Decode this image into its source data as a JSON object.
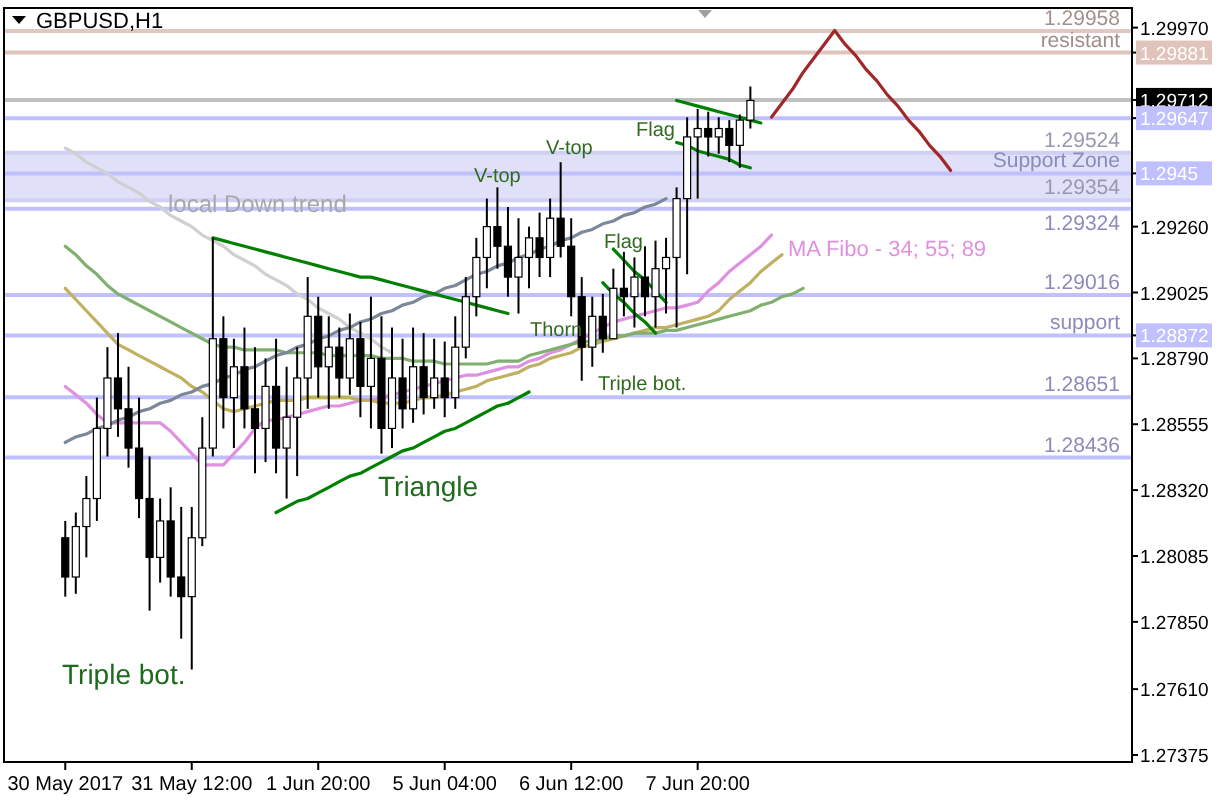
{
  "chart_data": {
    "type": "candlestick",
    "title": "GBPUSD,H1",
    "categories": [
      "30 May 2017",
      null,
      null,
      null,
      null,
      null,
      null,
      null,
      null,
      null,
      null,
      null,
      "31 May 12:00",
      null,
      null,
      null,
      null,
      null,
      null,
      null,
      null,
      null,
      null,
      null,
      "1 Jun 20:00",
      null,
      null,
      null,
      null,
      null,
      null,
      null,
      null,
      null,
      null,
      null,
      "5 Jun 04:00",
      null,
      null,
      null,
      null,
      null,
      null,
      null,
      null,
      null,
      null,
      null,
      "6 Jun 12:00",
      null,
      null,
      null,
      null,
      null,
      null,
      null,
      null,
      null,
      null,
      null,
      "7 Jun 20:00",
      null,
      null,
      null,
      null,
      null,
      null,
      null,
      null,
      null,
      null,
      null,
      null,
      null,
      null,
      null,
      null,
      null,
      null,
      null,
      null,
      null,
      null,
      null,
      null
    ],
    "ohlc": [
      [
        1.2815,
        1.2821,
        1.2794,
        1.2801
      ],
      [
        1.2801,
        1.2824,
        1.2795,
        1.2819
      ],
      [
        1.2819,
        1.2837,
        1.2808,
        1.2829
      ],
      [
        1.2829,
        1.2865,
        1.2821,
        1.2854
      ],
      [
        1.2854,
        1.2883,
        1.2844,
        1.2872
      ],
      [
        1.2872,
        1.2888,
        1.2851,
        1.2861
      ],
      [
        1.2861,
        1.2876,
        1.284,
        1.2847
      ],
      [
        1.2847,
        1.2865,
        1.2822,
        1.2829
      ],
      [
        1.2829,
        1.2844,
        1.2789,
        1.2808
      ],
      [
        1.2808,
        1.2829,
        1.2799,
        1.2821
      ],
      [
        1.2821,
        1.2833,
        1.2794,
        1.2801
      ],
      [
        1.2801,
        1.2826,
        1.2779,
        1.2794
      ],
      [
        1.2794,
        1.2826,
        1.2768,
        1.2815
      ],
      [
        1.2815,
        1.2858,
        1.2812,
        1.2847
      ],
      [
        1.2847,
        1.2922,
        1.2844,
        1.2886
      ],
      [
        1.2886,
        1.2894,
        1.2854,
        1.2865
      ],
      [
        1.2865,
        1.2886,
        1.2847,
        1.2876
      ],
      [
        1.2876,
        1.289,
        1.2854,
        1.2861
      ],
      [
        1.2861,
        1.2883,
        1.2838,
        1.2854
      ],
      [
        1.2854,
        1.2879,
        1.2842,
        1.2869
      ],
      [
        1.2869,
        1.2886,
        1.2838,
        1.2847
      ],
      [
        1.2847,
        1.2876,
        1.2829,
        1.2858
      ],
      [
        1.2858,
        1.2883,
        1.2837,
        1.2872
      ],
      [
        1.2872,
        1.2908,
        1.2861,
        1.2894
      ],
      [
        1.2894,
        1.2901,
        1.2865,
        1.2876
      ],
      [
        1.2876,
        1.2894,
        1.2861,
        1.2883
      ],
      [
        1.2883,
        1.289,
        1.2865,
        1.2872
      ],
      [
        1.2872,
        1.2895,
        1.2866,
        1.2886
      ],
      [
        1.2886,
        1.2892,
        1.2858,
        1.2869
      ],
      [
        1.2869,
        1.2901,
        1.2854,
        1.2879
      ],
      [
        1.2879,
        1.2894,
        1.2845,
        1.2854
      ],
      [
        1.2854,
        1.289,
        1.2847,
        1.2872
      ],
      [
        1.2872,
        1.2886,
        1.2854,
        1.2861
      ],
      [
        1.2861,
        1.289,
        1.2856,
        1.2876
      ],
      [
        1.2876,
        1.2888,
        1.2859,
        1.2865
      ],
      [
        1.2865,
        1.2886,
        1.2861,
        1.2872
      ],
      [
        1.2872,
        1.2885,
        1.2858,
        1.2865
      ],
      [
        1.2865,
        1.2894,
        1.2861,
        1.2883
      ],
      [
        1.2883,
        1.2908,
        1.2879,
        1.2901
      ],
      [
        1.2901,
        1.2922,
        1.2894,
        1.2915
      ],
      [
        1.2915,
        1.2936,
        1.2904,
        1.2926
      ],
      [
        1.2926,
        1.294,
        1.2911,
        1.2919
      ],
      [
        1.2919,
        1.2933,
        1.2901,
        1.2908
      ],
      [
        1.2908,
        1.2929,
        1.2895,
        1.2915
      ],
      [
        1.2915,
        1.2926,
        1.2904,
        1.2922
      ],
      [
        1.2922,
        1.2931,
        1.2908,
        1.2915
      ],
      [
        1.2915,
        1.2936,
        1.2908,
        1.2929
      ],
      [
        1.2929,
        1.2949,
        1.2915,
        1.2919
      ],
      [
        1.2919,
        1.2929,
        1.2894,
        1.2901
      ],
      [
        1.2901,
        1.2908,
        1.2871,
        1.2883
      ],
      [
        1.2883,
        1.2901,
        1.2876,
        1.2894
      ],
      [
        1.2894,
        1.2902,
        1.2881,
        1.2886
      ],
      [
        1.2886,
        1.2911,
        1.2886,
        1.2904
      ],
      [
        1.2904,
        1.2917,
        1.2894,
        1.2901
      ],
      [
        1.2901,
        1.2915,
        1.289,
        1.2908
      ],
      [
        1.2908,
        1.2919,
        1.2894,
        1.2901
      ],
      [
        1.2901,
        1.2921,
        1.289,
        1.2911
      ],
      [
        1.2911,
        1.2922,
        1.2895,
        1.2915
      ],
      [
        1.2915,
        1.294,
        1.289,
        1.2936
      ],
      [
        1.2936,
        1.2965,
        1.2909,
        1.2958
      ],
      [
        1.2958,
        1.2968,
        1.2936,
        1.2961
      ],
      [
        1.2961,
        1.2967,
        1.2951,
        1.2958
      ],
      [
        1.2958,
        1.2965,
        1.2952,
        1.2961
      ],
      [
        1.2961,
        1.2964,
        1.2949,
        1.2955
      ],
      [
        1.2955,
        1.2966,
        1.2947,
        1.2964
      ],
      [
        1.2964,
        1.2976,
        1.2961,
        1.2971
      ],
      null,
      null,
      null,
      null,
      null,
      null,
      null,
      null,
      null,
      null,
      null,
      null,
      null,
      null,
      null,
      null,
      null,
      null,
      null
    ],
    "series": [
      {
        "type": "line",
        "color": "#e090e0",
        "values": [
          1.2869,
          1.2866,
          1.2863,
          1.2859,
          1.2856,
          1.2856,
          1.2856,
          1.2856,
          1.2856,
          1.2856,
          1.2853,
          1.2849,
          1.2845,
          1.2841,
          1.2841,
          1.2841,
          1.2845,
          1.2849,
          1.2854,
          1.2857,
          1.2857,
          1.2858,
          1.2859,
          1.286,
          1.2861,
          1.2862,
          1.2862,
          1.2863,
          1.2864,
          1.2864,
          1.2865,
          1.2866,
          1.2867,
          1.2868,
          1.2869,
          1.287,
          1.2871,
          1.2872,
          1.2873,
          1.2873,
          1.2874,
          1.2875,
          1.2876,
          1.2876,
          1.2878,
          1.2879,
          1.2881,
          1.2882,
          1.2884,
          1.2886,
          1.2888,
          1.289,
          1.2892,
          1.2893,
          1.2894,
          1.2895,
          1.2896,
          1.2897,
          1.2897,
          1.2898,
          1.2899,
          1.2903,
          1.2906,
          1.291,
          1.2913,
          1.2916,
          1.2919,
          1.2923,
          null,
          null,
          null,
          null,
          null,
          null,
          null,
          null,
          null,
          null,
          null,
          null,
          null,
          null,
          null,
          null,
          null
        ]
      },
      {
        "type": "line",
        "color": "#c0b060",
        "values": [
          1.2904,
          1.29,
          1.2896,
          1.2892,
          1.2888,
          1.2884,
          1.2882,
          1.288,
          1.2878,
          1.2876,
          1.2874,
          1.2872,
          1.2869,
          1.2867,
          1.2864,
          1.2861,
          1.286,
          1.2861,
          1.2862,
          1.2863,
          1.2864,
          1.2864,
          1.2864,
          1.2865,
          1.2865,
          1.2865,
          1.2865,
          1.2865,
          1.2864,
          1.2864,
          1.2863,
          1.2863,
          1.2863,
          1.2864,
          1.2865,
          1.2865,
          1.2866,
          1.2867,
          1.2868,
          1.2869,
          1.2871,
          1.2872,
          1.2873,
          1.2874,
          1.2876,
          1.2877,
          1.2879,
          1.288,
          1.2881,
          1.2883,
          1.2884,
          1.2885,
          1.2886,
          1.2887,
          1.2888,
          1.2889,
          1.289,
          1.289,
          1.2891,
          1.2892,
          1.2893,
          1.2894,
          1.2896,
          1.29,
          1.2903,
          1.2906,
          1.291,
          1.2913,
          1.2916,
          null,
          null,
          null,
          null,
          null,
          null,
          null,
          null,
          null,
          null,
          null,
          null,
          null,
          null,
          null,
          null
        ]
      },
      {
        "type": "line",
        "color": "#80b070",
        "values": [
          1.2919,
          1.2916,
          1.2912,
          1.2909,
          1.2905,
          1.2902,
          1.29,
          1.2898,
          1.2896,
          1.2894,
          1.2892,
          1.289,
          1.2888,
          1.2886,
          1.2884,
          1.2883,
          1.2883,
          1.2882,
          1.2882,
          1.2882,
          1.2882,
          1.2881,
          1.2881,
          1.2881,
          1.2881,
          1.288,
          1.288,
          1.288,
          1.288,
          1.288,
          1.2879,
          1.2879,
          1.2879,
          1.2878,
          1.2878,
          1.2878,
          1.2877,
          1.2877,
          1.2877,
          1.2877,
          1.2877,
          1.2878,
          1.2878,
          1.2878,
          1.288,
          1.2881,
          1.2882,
          1.2883,
          1.2884,
          1.2885,
          1.2885,
          1.2886,
          1.2887,
          1.2887,
          1.2888,
          1.2888,
          1.2888,
          1.2889,
          1.2889,
          1.289,
          1.2891,
          1.2892,
          1.2893,
          1.2894,
          1.2895,
          1.2896,
          1.2898,
          1.2899,
          1.2901,
          1.2902,
          1.2904,
          null,
          null,
          null,
          null,
          null,
          null,
          null,
          null,
          null,
          null,
          null,
          null,
          null,
          null
        ]
      },
      {
        "type": "line",
        "color": "#d0d0d0",
        "values": [
          1.2954,
          1.2952,
          1.2949,
          1.2947,
          1.2945,
          1.2942,
          1.294,
          1.2938,
          1.2935,
          1.2933,
          1.293,
          1.2928,
          1.2926,
          1.2923,
          1.2921,
          1.2919,
          1.2916,
          1.2914,
          1.2912,
          1.2909,
          1.2907,
          1.2905,
          1.2902,
          1.29,
          1.2897,
          1.2895,
          1.2893,
          1.289,
          1.2888,
          1.2886,
          1.2883,
          1.2881,
          null,
          null,
          null,
          null,
          null,
          null,
          null,
          null,
          null,
          null,
          null,
          null,
          null,
          null,
          null,
          null,
          null,
          null,
          null,
          null,
          null,
          null,
          null,
          null,
          null,
          null,
          null,
          null,
          null,
          null,
          null,
          null,
          null,
          null,
          null,
          null,
          null,
          null,
          null,
          null,
          null,
          null,
          null,
          null,
          null,
          null,
          null,
          null,
          null,
          null,
          null,
          null,
          null
        ]
      },
      {
        "type": "line",
        "color": "#7c8898",
        "values": [
          1.2849,
          1.2851,
          1.2852,
          1.2854,
          1.2855,
          1.2857,
          1.2858,
          1.286,
          1.2861,
          1.2863,
          1.2864,
          1.2866,
          1.2867,
          1.2869,
          1.287,
          1.2872,
          1.2873,
          1.2875,
          1.2876,
          1.2878,
          1.288,
          1.2881,
          1.2883,
          1.2884,
          1.2886,
          1.2887,
          1.2889,
          1.289,
          1.2892,
          1.2893,
          1.2895,
          1.2896,
          1.2898,
          1.2899,
          1.2901,
          1.2902,
          1.2904,
          1.2905,
          1.2907,
          1.2909,
          1.291,
          1.2912,
          1.2913,
          1.2915,
          1.2916,
          1.2918,
          1.2919,
          1.2921,
          1.2922,
          1.2924,
          1.2925,
          1.2927,
          1.2928,
          1.293,
          1.2931,
          1.2933,
          1.2934,
          1.2936,
          null,
          null,
          null,
          null,
          null,
          null,
          null,
          null,
          null,
          null,
          null,
          null,
          null,
          null,
          null,
          null,
          null,
          null,
          null,
          null,
          null,
          null,
          null,
          null,
          null,
          null,
          null
        ]
      },
      {
        "type": "line",
        "color": "#008000",
        "values": [
          null,
          null,
          null,
          null,
          null,
          null,
          null,
          null,
          null,
          null,
          null,
          null,
          null,
          null,
          1.2922,
          1.2921,
          1.292,
          1.2919,
          1.2918,
          1.2917,
          1.2916,
          1.2915,
          1.2914,
          1.2913,
          1.2912,
          1.2911,
          1.291,
          1.2909,
          1.2908,
          1.2908,
          1.2907,
          1.2906,
          1.2905,
          1.2904,
          1.2903,
          1.2902,
          1.2901,
          1.29,
          1.2899,
          1.2898,
          1.2897,
          1.2896,
          1.2895,
          null,
          null,
          null,
          null,
          null,
          null,
          null,
          null,
          null,
          null,
          null,
          null,
          null,
          null,
          null,
          null,
          null,
          null,
          null,
          null,
          null,
          null,
          null,
          null,
          null,
          null,
          null,
          null,
          null,
          null,
          null,
          null,
          null,
          null,
          null,
          null,
          null,
          null,
          null,
          null,
          null,
          null
        ]
      },
      {
        "type": "line",
        "color": "#008000",
        "values": [
          null,
          null,
          null,
          null,
          null,
          null,
          null,
          null,
          null,
          null,
          null,
          null,
          null,
          null,
          null,
          null,
          null,
          null,
          null,
          null,
          1.2824,
          1.2826,
          1.2828,
          1.2829,
          1.2831,
          1.2833,
          1.2835,
          1.2837,
          1.2838,
          1.284,
          1.2842,
          1.2844,
          1.2846,
          1.2847,
          1.2849,
          1.2851,
          1.2853,
          1.2854,
          1.2856,
          1.2858,
          1.286,
          1.2862,
          1.2863,
          1.2865,
          1.2867,
          null,
          null,
          null,
          null,
          null,
          null,
          null,
          null,
          null,
          null,
          null,
          null,
          null,
          null,
          null,
          null,
          null,
          null,
          null,
          null,
          null,
          null,
          null,
          null,
          null,
          null,
          null,
          null,
          null,
          null,
          null,
          null,
          null,
          null,
          null,
          null,
          null,
          null,
          null,
          null
        ]
      },
      {
        "type": "line",
        "color": "#008000",
        "values": [
          null,
          null,
          null,
          null,
          null,
          null,
          null,
          null,
          null,
          null,
          null,
          null,
          null,
          null,
          null,
          null,
          null,
          null,
          null,
          null,
          null,
          null,
          null,
          null,
          null,
          null,
          null,
          null,
          null,
          null,
          null,
          null,
          null,
          null,
          null,
          null,
          null,
          null,
          null,
          null,
          null,
          null,
          null,
          null,
          null,
          null,
          null,
          null,
          null,
          null,
          null,
          null,
          1.2918,
          1.2914,
          1.291,
          1.2907,
          1.2903,
          1.2899,
          null,
          null,
          null,
          null,
          null,
          null,
          null,
          null,
          null,
          null,
          null,
          null,
          null,
          null,
          null,
          null,
          null,
          null,
          null,
          null,
          null,
          null,
          null,
          null,
          null,
          null,
          null
        ]
      },
      {
        "type": "line",
        "color": "#008000",
        "values": [
          null,
          null,
          null,
          null,
          null,
          null,
          null,
          null,
          null,
          null,
          null,
          null,
          null,
          null,
          null,
          null,
          null,
          null,
          null,
          null,
          null,
          null,
          null,
          null,
          null,
          null,
          null,
          null,
          null,
          null,
          null,
          null,
          null,
          null,
          null,
          null,
          null,
          null,
          null,
          null,
          null,
          null,
          null,
          null,
          null,
          null,
          null,
          null,
          null,
          null,
          null,
          1.2906,
          1.2902,
          1.2899,
          1.2895,
          1.2892,
          1.2888,
          null,
          null,
          null,
          null,
          null,
          null,
          null,
          null,
          null,
          null,
          null,
          null,
          null,
          null,
          null,
          null,
          null,
          null,
          null,
          null,
          null,
          null,
          null,
          null,
          null,
          null,
          null,
          null
        ]
      },
      {
        "type": "line",
        "color": "#008000",
        "values": [
          null,
          null,
          null,
          null,
          null,
          null,
          null,
          null,
          null,
          null,
          null,
          null,
          null,
          null,
          null,
          null,
          null,
          null,
          null,
          null,
          null,
          null,
          null,
          null,
          null,
          null,
          null,
          null,
          null,
          null,
          null,
          null,
          null,
          null,
          null,
          null,
          null,
          null,
          null,
          null,
          null,
          null,
          null,
          null,
          null,
          null,
          null,
          null,
          null,
          null,
          null,
          null,
          null,
          null,
          null,
          null,
          null,
          null,
          1.2971,
          1.297,
          1.2969,
          1.2968,
          1.2967,
          1.2966,
          1.2965,
          1.2964,
          1.2963,
          null,
          null,
          null,
          null,
          null,
          null,
          null,
          null,
          null,
          null,
          null,
          null,
          null,
          null,
          null,
          null,
          null,
          null
        ]
      },
      {
        "type": "line",
        "color": "#008000",
        "values": [
          null,
          null,
          null,
          null,
          null,
          null,
          null,
          null,
          null,
          null,
          null,
          null,
          null,
          null,
          null,
          null,
          null,
          null,
          null,
          null,
          null,
          null,
          null,
          null,
          null,
          null,
          null,
          null,
          null,
          null,
          null,
          null,
          null,
          null,
          null,
          null,
          null,
          null,
          null,
          null,
          null,
          null,
          null,
          null,
          null,
          null,
          null,
          null,
          null,
          null,
          null,
          null,
          null,
          null,
          null,
          null,
          null,
          null,
          1.2956,
          1.2955,
          1.2953,
          1.2952,
          1.2951,
          1.295,
          1.2948,
          1.2947,
          null,
          null,
          null,
          null,
          null,
          null,
          null,
          null,
          null,
          null,
          null,
          null,
          null,
          null,
          null,
          null,
          null,
          null,
          null
        ]
      },
      {
        "type": "line",
        "color": "#a02828",
        "values": [
          null,
          null,
          null,
          null,
          null,
          null,
          null,
          null,
          null,
          null,
          null,
          null,
          null,
          null,
          null,
          null,
          null,
          null,
          null,
          null,
          null,
          null,
          null,
          null,
          null,
          null,
          null,
          null,
          null,
          null,
          null,
          null,
          null,
          null,
          null,
          null,
          null,
          null,
          null,
          null,
          null,
          null,
          null,
          null,
          null,
          null,
          null,
          null,
          null,
          null,
          null,
          null,
          null,
          null,
          null,
          null,
          null,
          null,
          null,
          null,
          null,
          null,
          null,
          null,
          null,
          null,
          null,
          1.2965,
          1.297,
          1.2975,
          1.2981,
          1.2986,
          1.2991,
          1.2996,
          1.2991,
          1.2987,
          1.2982,
          1.2978,
          1.2973,
          1.2969,
          1.2964,
          1.296,
          1.2955,
          1.2951,
          1.2946
        ]
      }
    ],
    "ylim": [
      1.2735,
      1.3004
    ],
    "yticks": [
      {
        "value": 1.2997,
        "label": "1.29970"
      },
      1.29881,
      1.29712,
      1.29647,
      1.2945,
      {
        "value": 1.2926,
        "label": "1.29260"
      },
      1.29025,
      {
        "value": 1.2879,
        "label": "1.28790"
      },
      1.28872,
      1.28555,
      {
        "value": 1.2832,
        "label": "1.28320"
      },
      1.28085,
      {
        "value": 1.2785,
        "label": "1.27850"
      },
      {
        "value": 1.2761,
        "label": "1.27610"
      },
      1.27375
    ],
    "ref_lines": [
      {
        "axis": "y",
        "value": 1.29958,
        "label": "1.29958",
        "color": "#e0c8c0"
      },
      {
        "axis": "y",
        "value": 1.29881,
        "label": "resistant",
        "color": "#e0c4bc"
      },
      {
        "axis": "y",
        "value": 1.29712,
        "label": null,
        "color": "#c0c0c0"
      },
      {
        "axis": "y",
        "value": 1.29647,
        "label": null,
        "color": "#c0c0ff"
      },
      {
        "axis": "y",
        "value": 1.29524,
        "label": "1.29524",
        "color": "#d0d0f4"
      },
      {
        "axis": "y",
        "value": 1.2945,
        "label": "Support Zone",
        "color": "#c0c0ff"
      },
      {
        "axis": "y",
        "value": 1.29354,
        "label": "1.29354",
        "color": "#d0d0f4"
      },
      {
        "axis": "y",
        "value": 1.29324,
        "label": "1.29324",
        "color": "#c0c0ff"
      },
      {
        "axis": "y",
        "value": 1.29016,
        "label": "1.29016",
        "color": "#c0c0ff"
      },
      {
        "axis": "y",
        "value": 1.28872,
        "label": "support",
        "color": "#c0c0ff"
      },
      {
        "axis": "y",
        "value": 1.28651,
        "label": "1.28651",
        "color": "#c0c0ff"
      },
      {
        "axis": "y",
        "value": 1.28436,
        "label": "1.28436",
        "color": "#c0c0ff"
      }
    ],
    "bands": [
      {
        "axis": "y",
        "from": 1.29354,
        "to": 1.29524,
        "color": "#e0e0f8"
      }
    ],
    "annotations": [
      "local Down trend",
      "V-top",
      "V-top",
      "Flag",
      "Flag",
      "Thorn",
      "Triple bot.",
      "Triangle",
      "Triple bot.",
      "MA Fibo - 34; 55; 89"
    ]
  }
}
